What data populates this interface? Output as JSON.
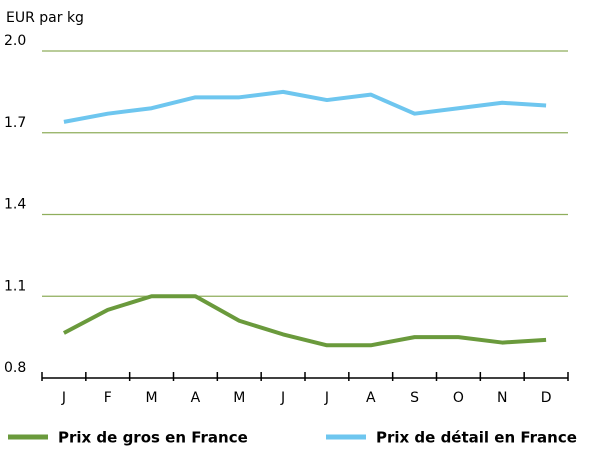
{
  "chart_data": {
    "type": "line",
    "y_axis_label": "EUR par kg",
    "categories": [
      "J",
      "F",
      "M",
      "A",
      "M",
      "J",
      "J",
      "A",
      "S",
      "O",
      "N",
      "D"
    ],
    "series": [
      {
        "name": "Prix de gros en France",
        "color": "#6a9a3c",
        "values": [
          0.965,
          1.05,
          1.1,
          1.1,
          1.01,
          0.96,
          0.92,
          0.92,
          0.95,
          0.95,
          0.93,
          0.94
        ]
      },
      {
        "name": "Prix de détail en France",
        "color": "#6ec6ef",
        "values": [
          1.74,
          1.77,
          1.79,
          1.83,
          1.83,
          1.85,
          1.82,
          1.84,
          1.77,
          1.79,
          1.81,
          1.8
        ]
      }
    ],
    "ylim": [
      0.8,
      2.0
    ],
    "yticks": [
      0.8,
      1.1,
      1.4,
      1.7,
      {
        "value": 2,
        "label": "2.0"
      }
    ],
    "grid": true,
    "grid_color": "#8fae5c",
    "legend": "bottom"
  }
}
